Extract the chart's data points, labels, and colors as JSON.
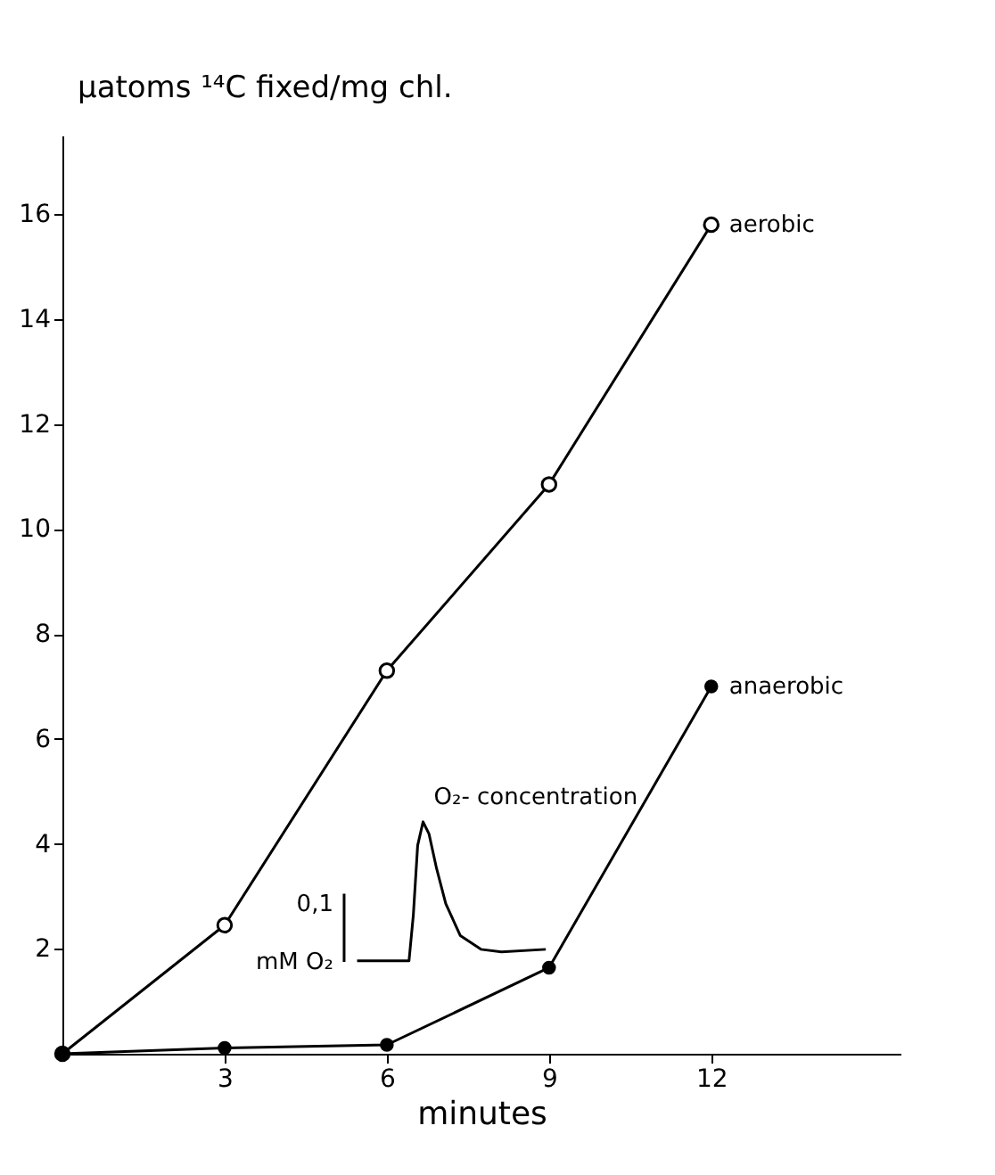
{
  "chart_data": {
    "type": "line",
    "xlabel": "minutes",
    "ylabel": "μatoms ¹⁴C fixed/mg chl.",
    "xlim": [
      0,
      15.5
    ],
    "ylim": [
      0,
      17.5
    ],
    "xticks": [
      3,
      6,
      9,
      12
    ],
    "yticks": [
      2,
      4,
      6,
      8,
      10,
      12,
      14,
      16
    ],
    "line_style": "solid",
    "series": [
      {
        "name": "aerobic",
        "color": "#000000",
        "marker": "circle",
        "x": [
          0,
          3,
          6,
          9,
          12
        ],
        "values": [
          0,
          2.45,
          7.3,
          10.85,
          15.8
        ]
      },
      {
        "name": "anaerobic",
        "color": "#000000",
        "marker": "circle",
        "x": [
          0,
          3,
          6,
          9,
          12
        ],
        "values": [
          0,
          0.11,
          0.17,
          1.64,
          7.0
        ]
      },
      {
        "color": "#000000",
        "marker": "none",
        "x": [
          5.45,
          6.41,
          6.49,
          6.57,
          6.67,
          6.78,
          6.92,
          7.09,
          7.36,
          7.74,
          8.12,
          8.94
        ],
        "values": [
          1.77,
          1.77,
          2.64,
          3.97,
          4.42,
          4.19,
          3.53,
          2.86,
          2.25,
          1.99,
          1.94,
          1.99
        ]
      },
      {
        "color": "#000000",
        "marker": "none",
        "x": [
          5.21,
          5.21
        ],
        "values": [
          1.75,
          3.05
        ]
      }
    ],
    "annotations": [
      "O₂- concentration",
      "0,1",
      "mM O₂"
    ]
  }
}
